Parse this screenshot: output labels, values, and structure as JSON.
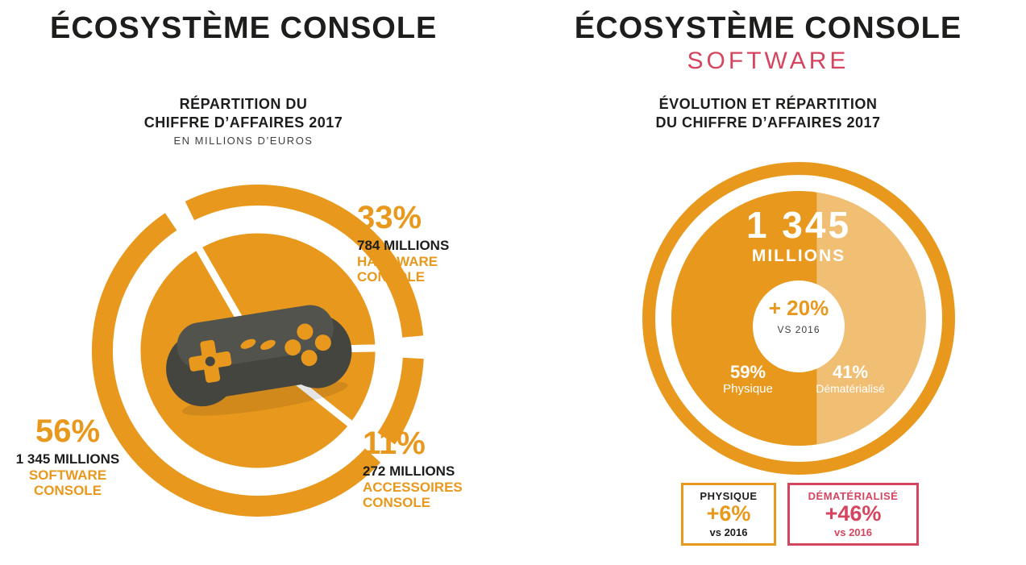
{
  "colors": {
    "orange": "#E8991D",
    "orange_light": "#F0BF74",
    "red": "#D5455F",
    "dark": "#1D1D1B",
    "gray": "#3F3F3E",
    "white": "#FFFFFF",
    "gamepad_body": "#45453F",
    "gamepad_top": "#53534D"
  },
  "left_panel": {
    "title": "ÉCOSYSTÈME CONSOLE",
    "subtitle_line1": "RÉPARTITION DU",
    "subtitle_line2": "CHIFFRE D’AFFAIRES 2017",
    "subtitle_line3": "EN MILLIONS D’EUROS",
    "hardware": {
      "pct": "33%",
      "amount": "784 MILLIONS",
      "name1": "HARDWARE",
      "name2": "CONSOLE"
    },
    "software": {
      "pct": "56%",
      "amount": "1 345 MILLIONS",
      "name1": "SOFTWARE",
      "name2": "CONSOLE"
    },
    "accessories": {
      "pct": "11%",
      "amount": "272 MILLIONS",
      "name1": "ACCESSOIRES",
      "name2": "CONSOLE"
    }
  },
  "right_panel": {
    "title": "ÉCOSYSTÈME CONSOLE",
    "subtitle": "SOFTWARE",
    "heading_line1": "ÉVOLUTION ET RÉPARTITION",
    "heading_line2": "DU CHIFFRE D’AFFAIRES 2017",
    "total": "1 345",
    "total_unit": "MILLIONS",
    "growth": "+ 20%",
    "growth_ref": "VS 2016",
    "physical_pct": "59%",
    "physical_label": "Physique",
    "digital_pct": "41%",
    "digital_label": "Dématérialisé",
    "box_physical": {
      "title": "PHYSIQUE",
      "value": "+6%",
      "ref": "vs 2016"
    },
    "box_digital": {
      "title": "DÉMATÉRIALISÉ",
      "value": "+46%",
      "ref": "vs 2016"
    }
  },
  "chart_data": [
    {
      "type": "pie",
      "title": "ÉCOSYSTÈME CONSOLE — RÉPARTITION DU CHIFFRE D’AFFAIRES 2017",
      "unit": "EN MILLIONS D’EUROS",
      "categories": [
        "HARDWARE CONSOLE",
        "ACCESSOIRES CONSOLE",
        "SOFTWARE CONSOLE"
      ],
      "values": [
        33,
        11,
        56
      ],
      "amounts_millions": [
        784,
        272,
        1345
      ],
      "start_angle_deg": 120,
      "direction": "clockwise",
      "style": "orange pie with outer ring arcs, white gaps between slices, gamepad icon in center",
      "legend_position": "labels around chart"
    },
    {
      "type": "pie",
      "title": "ÉCOSYSTÈME CONSOLE SOFTWARE — ÉVOLUTION ET RÉPARTITION DU CHIFFRE D’AFFAIRES 2017",
      "categories": [
        "Physique",
        "Dématérialisé"
      ],
      "values": [
        59,
        41
      ],
      "total_millions": "1 345",
      "growth_vs_2016": "+ 20%",
      "growth_by_category_vs_2016": {
        "Physique": "+6%",
        "Dématérialisé": "+46%"
      },
      "style": "full disc split by vertical chord; dark orange = Physique (59%), light orange = Dématérialisé (41%); outer orange ring; white center circle with growth"
    }
  ]
}
